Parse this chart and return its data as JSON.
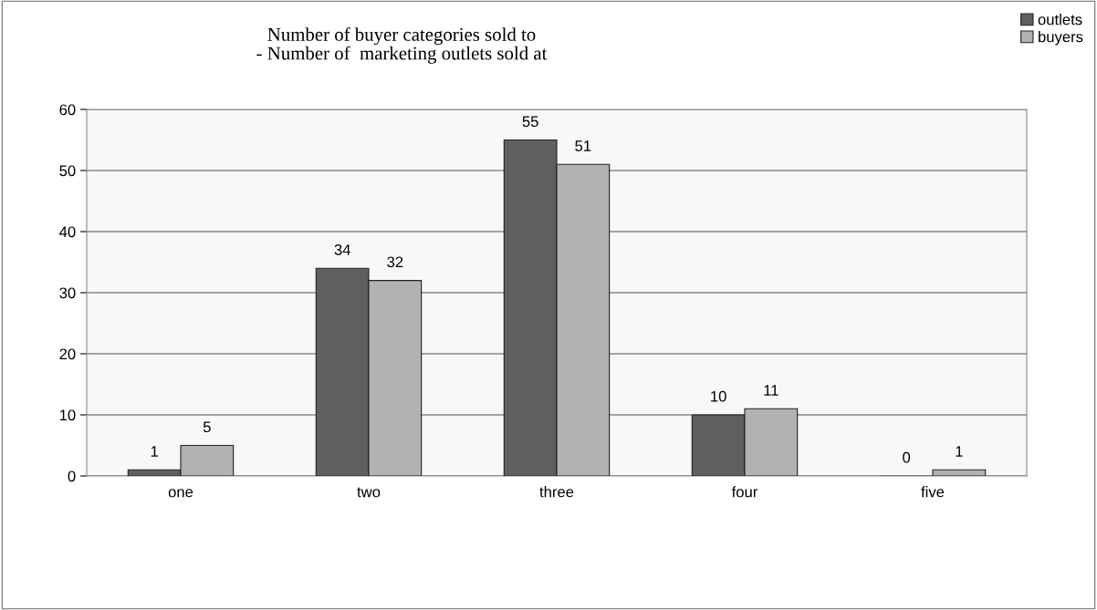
{
  "chart_data": {
    "type": "bar",
    "title": "Number of buyer categories sold to\n- Number of  marketing outlets sold at",
    "categories": [
      "one",
      "two",
      "three",
      "four",
      "five"
    ],
    "series": [
      {
        "name": "outlets",
        "color": "#5f5f5f",
        "values": [
          1,
          34,
          55,
          10,
          0
        ]
      },
      {
        "name": "buyers",
        "color": "#b2b2b2",
        "values": [
          5,
          32,
          51,
          11,
          1
        ]
      }
    ],
    "ylim": [
      0,
      60
    ],
    "yticks": [
      0,
      10,
      20,
      30,
      40,
      50,
      60
    ],
    "grid": "y",
    "legend": "top right",
    "data_labels": true
  }
}
